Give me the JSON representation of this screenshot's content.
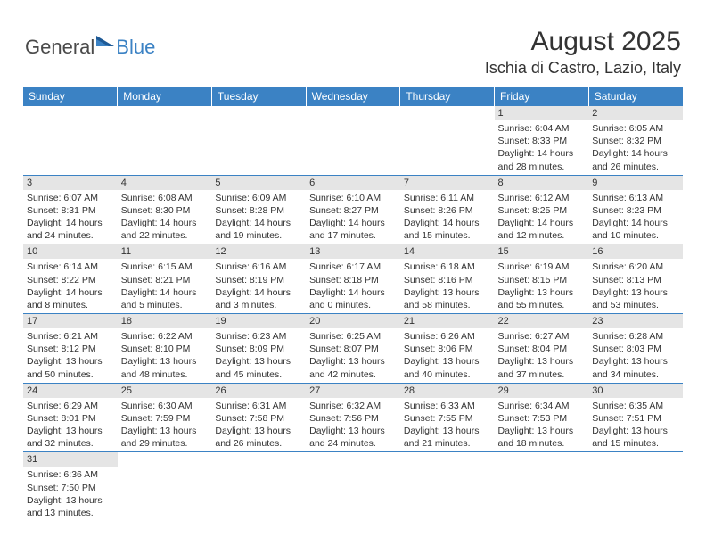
{
  "brand": {
    "general": "General",
    "blue": "Blue"
  },
  "title": "August 2025",
  "location": "Ischia di Castro, Lazio, Italy",
  "colors": {
    "header_bg": "#3b82c4",
    "header_text": "#ffffff",
    "daynum_bg": "#e5e5e5",
    "text": "#333333",
    "border": "#3b82c4"
  },
  "weekdays": [
    "Sunday",
    "Monday",
    "Tuesday",
    "Wednesday",
    "Thursday",
    "Friday",
    "Saturday"
  ],
  "weeks": [
    [
      null,
      null,
      null,
      null,
      null,
      {
        "n": "1",
        "sr": "Sunrise: 6:04 AM",
        "ss": "Sunset: 8:33 PM",
        "d1": "Daylight: 14 hours",
        "d2": "and 28 minutes."
      },
      {
        "n": "2",
        "sr": "Sunrise: 6:05 AM",
        "ss": "Sunset: 8:32 PM",
        "d1": "Daylight: 14 hours",
        "d2": "and 26 minutes."
      }
    ],
    [
      {
        "n": "3",
        "sr": "Sunrise: 6:07 AM",
        "ss": "Sunset: 8:31 PM",
        "d1": "Daylight: 14 hours",
        "d2": "and 24 minutes."
      },
      {
        "n": "4",
        "sr": "Sunrise: 6:08 AM",
        "ss": "Sunset: 8:30 PM",
        "d1": "Daylight: 14 hours",
        "d2": "and 22 minutes."
      },
      {
        "n": "5",
        "sr": "Sunrise: 6:09 AM",
        "ss": "Sunset: 8:28 PM",
        "d1": "Daylight: 14 hours",
        "d2": "and 19 minutes."
      },
      {
        "n": "6",
        "sr": "Sunrise: 6:10 AM",
        "ss": "Sunset: 8:27 PM",
        "d1": "Daylight: 14 hours",
        "d2": "and 17 minutes."
      },
      {
        "n": "7",
        "sr": "Sunrise: 6:11 AM",
        "ss": "Sunset: 8:26 PM",
        "d1": "Daylight: 14 hours",
        "d2": "and 15 minutes."
      },
      {
        "n": "8",
        "sr": "Sunrise: 6:12 AM",
        "ss": "Sunset: 8:25 PM",
        "d1": "Daylight: 14 hours",
        "d2": "and 12 minutes."
      },
      {
        "n": "9",
        "sr": "Sunrise: 6:13 AM",
        "ss": "Sunset: 8:23 PM",
        "d1": "Daylight: 14 hours",
        "d2": "and 10 minutes."
      }
    ],
    [
      {
        "n": "10",
        "sr": "Sunrise: 6:14 AM",
        "ss": "Sunset: 8:22 PM",
        "d1": "Daylight: 14 hours",
        "d2": "and 8 minutes."
      },
      {
        "n": "11",
        "sr": "Sunrise: 6:15 AM",
        "ss": "Sunset: 8:21 PM",
        "d1": "Daylight: 14 hours",
        "d2": "and 5 minutes."
      },
      {
        "n": "12",
        "sr": "Sunrise: 6:16 AM",
        "ss": "Sunset: 8:19 PM",
        "d1": "Daylight: 14 hours",
        "d2": "and 3 minutes."
      },
      {
        "n": "13",
        "sr": "Sunrise: 6:17 AM",
        "ss": "Sunset: 8:18 PM",
        "d1": "Daylight: 14 hours",
        "d2": "and 0 minutes."
      },
      {
        "n": "14",
        "sr": "Sunrise: 6:18 AM",
        "ss": "Sunset: 8:16 PM",
        "d1": "Daylight: 13 hours",
        "d2": "and 58 minutes."
      },
      {
        "n": "15",
        "sr": "Sunrise: 6:19 AM",
        "ss": "Sunset: 8:15 PM",
        "d1": "Daylight: 13 hours",
        "d2": "and 55 minutes."
      },
      {
        "n": "16",
        "sr": "Sunrise: 6:20 AM",
        "ss": "Sunset: 8:13 PM",
        "d1": "Daylight: 13 hours",
        "d2": "and 53 minutes."
      }
    ],
    [
      {
        "n": "17",
        "sr": "Sunrise: 6:21 AM",
        "ss": "Sunset: 8:12 PM",
        "d1": "Daylight: 13 hours",
        "d2": "and 50 minutes."
      },
      {
        "n": "18",
        "sr": "Sunrise: 6:22 AM",
        "ss": "Sunset: 8:10 PM",
        "d1": "Daylight: 13 hours",
        "d2": "and 48 minutes."
      },
      {
        "n": "19",
        "sr": "Sunrise: 6:23 AM",
        "ss": "Sunset: 8:09 PM",
        "d1": "Daylight: 13 hours",
        "d2": "and 45 minutes."
      },
      {
        "n": "20",
        "sr": "Sunrise: 6:25 AM",
        "ss": "Sunset: 8:07 PM",
        "d1": "Daylight: 13 hours",
        "d2": "and 42 minutes."
      },
      {
        "n": "21",
        "sr": "Sunrise: 6:26 AM",
        "ss": "Sunset: 8:06 PM",
        "d1": "Daylight: 13 hours",
        "d2": "and 40 minutes."
      },
      {
        "n": "22",
        "sr": "Sunrise: 6:27 AM",
        "ss": "Sunset: 8:04 PM",
        "d1": "Daylight: 13 hours",
        "d2": "and 37 minutes."
      },
      {
        "n": "23",
        "sr": "Sunrise: 6:28 AM",
        "ss": "Sunset: 8:03 PM",
        "d1": "Daylight: 13 hours",
        "d2": "and 34 minutes."
      }
    ],
    [
      {
        "n": "24",
        "sr": "Sunrise: 6:29 AM",
        "ss": "Sunset: 8:01 PM",
        "d1": "Daylight: 13 hours",
        "d2": "and 32 minutes."
      },
      {
        "n": "25",
        "sr": "Sunrise: 6:30 AM",
        "ss": "Sunset: 7:59 PM",
        "d1": "Daylight: 13 hours",
        "d2": "and 29 minutes."
      },
      {
        "n": "26",
        "sr": "Sunrise: 6:31 AM",
        "ss": "Sunset: 7:58 PM",
        "d1": "Daylight: 13 hours",
        "d2": "and 26 minutes."
      },
      {
        "n": "27",
        "sr": "Sunrise: 6:32 AM",
        "ss": "Sunset: 7:56 PM",
        "d1": "Daylight: 13 hours",
        "d2": "and 24 minutes."
      },
      {
        "n": "28",
        "sr": "Sunrise: 6:33 AM",
        "ss": "Sunset: 7:55 PM",
        "d1": "Daylight: 13 hours",
        "d2": "and 21 minutes."
      },
      {
        "n": "29",
        "sr": "Sunrise: 6:34 AM",
        "ss": "Sunset: 7:53 PM",
        "d1": "Daylight: 13 hours",
        "d2": "and 18 minutes."
      },
      {
        "n": "30",
        "sr": "Sunrise: 6:35 AM",
        "ss": "Sunset: 7:51 PM",
        "d1": "Daylight: 13 hours",
        "d2": "and 15 minutes."
      }
    ],
    [
      {
        "n": "31",
        "sr": "Sunrise: 6:36 AM",
        "ss": "Sunset: 7:50 PM",
        "d1": "Daylight: 13 hours",
        "d2": "and 13 minutes."
      },
      null,
      null,
      null,
      null,
      null,
      null
    ]
  ]
}
